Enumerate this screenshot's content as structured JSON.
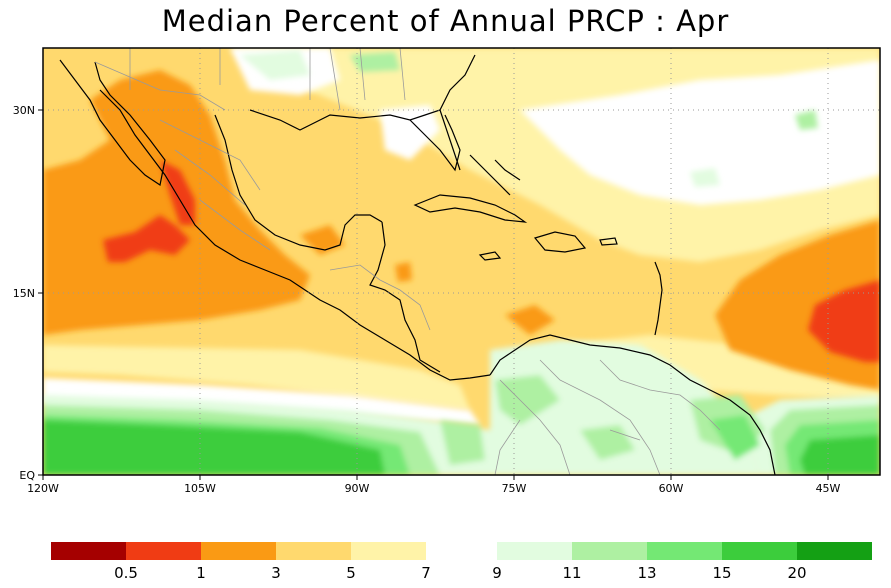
{
  "title": "Median Percent of Annual PRCP :   Apr",
  "map": {
    "lat_ticks": [
      "30N",
      "15N",
      "EQ"
    ],
    "lon_ticks": [
      "120W",
      "105W",
      "90W",
      "75W",
      "60W",
      "45W"
    ],
    "grid": true
  },
  "colorbar": {
    "boxes": [
      {
        "color": "#a50000"
      },
      {
        "color": "#f03c14"
      },
      {
        "color": "#fa9a14"
      },
      {
        "color": "#ffd96e"
      },
      {
        "color": "#fff3a8"
      },
      {
        "color": "#e2fce0"
      },
      {
        "color": "#aef0a2"
      },
      {
        "color": "#74e874"
      },
      {
        "color": "#3ccd3c"
      },
      {
        "color": "#14a014"
      }
    ],
    "labels": [
      "0.5",
      "1",
      "3",
      "5",
      "7",
      "9",
      "11",
      "13",
      "15",
      "20"
    ]
  }
}
